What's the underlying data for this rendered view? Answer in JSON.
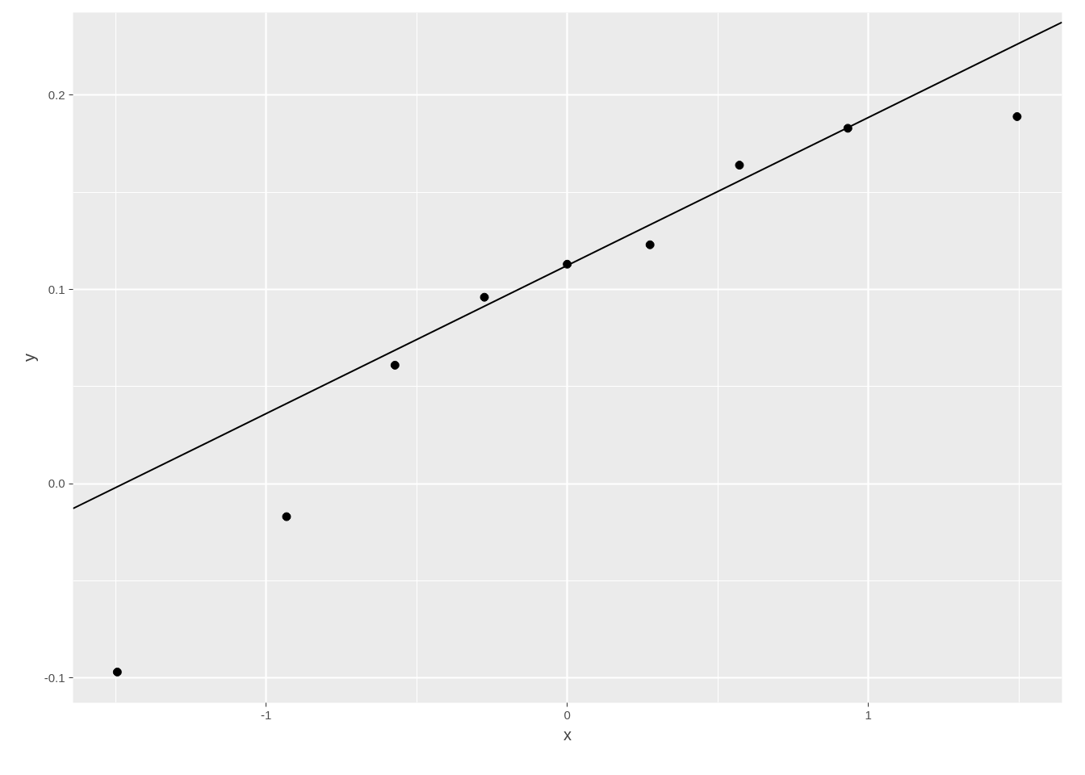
{
  "chart_data": {
    "type": "scatter",
    "xlabel": "x",
    "ylabel": "y",
    "xlim": [
      -1.641,
      1.643
    ],
    "ylim": [
      -0.1128,
      0.2426
    ],
    "xticks": [
      -1,
      0,
      1
    ],
    "yticks": [
      {
        "value": -0.1,
        "label": "-0.1"
      },
      {
        "value": 0,
        "label": "0.0"
      },
      {
        "value": 0.1,
        "label": "0.1"
      },
      {
        "value": 0.2,
        "label": "0.2"
      }
    ],
    "grid": true,
    "series": [
      {
        "marker": "circle",
        "color": "#000000",
        "x": [
          -1.494,
          -0.932,
          -0.572,
          -0.275,
          0,
          0.275,
          0.572,
          0.932,
          1.494
        ],
        "values": [
          -0.097,
          -0.017,
          0.061,
          0.096,
          0.113,
          0.123,
          0.164,
          0.183,
          0.189
        ]
      },
      {
        "type": "line",
        "marker": "none",
        "color": "#000000",
        "x": [
          -1.641,
          1.643
        ],
        "values": [
          -0.0128,
          0.2376
        ]
      }
    ]
  }
}
